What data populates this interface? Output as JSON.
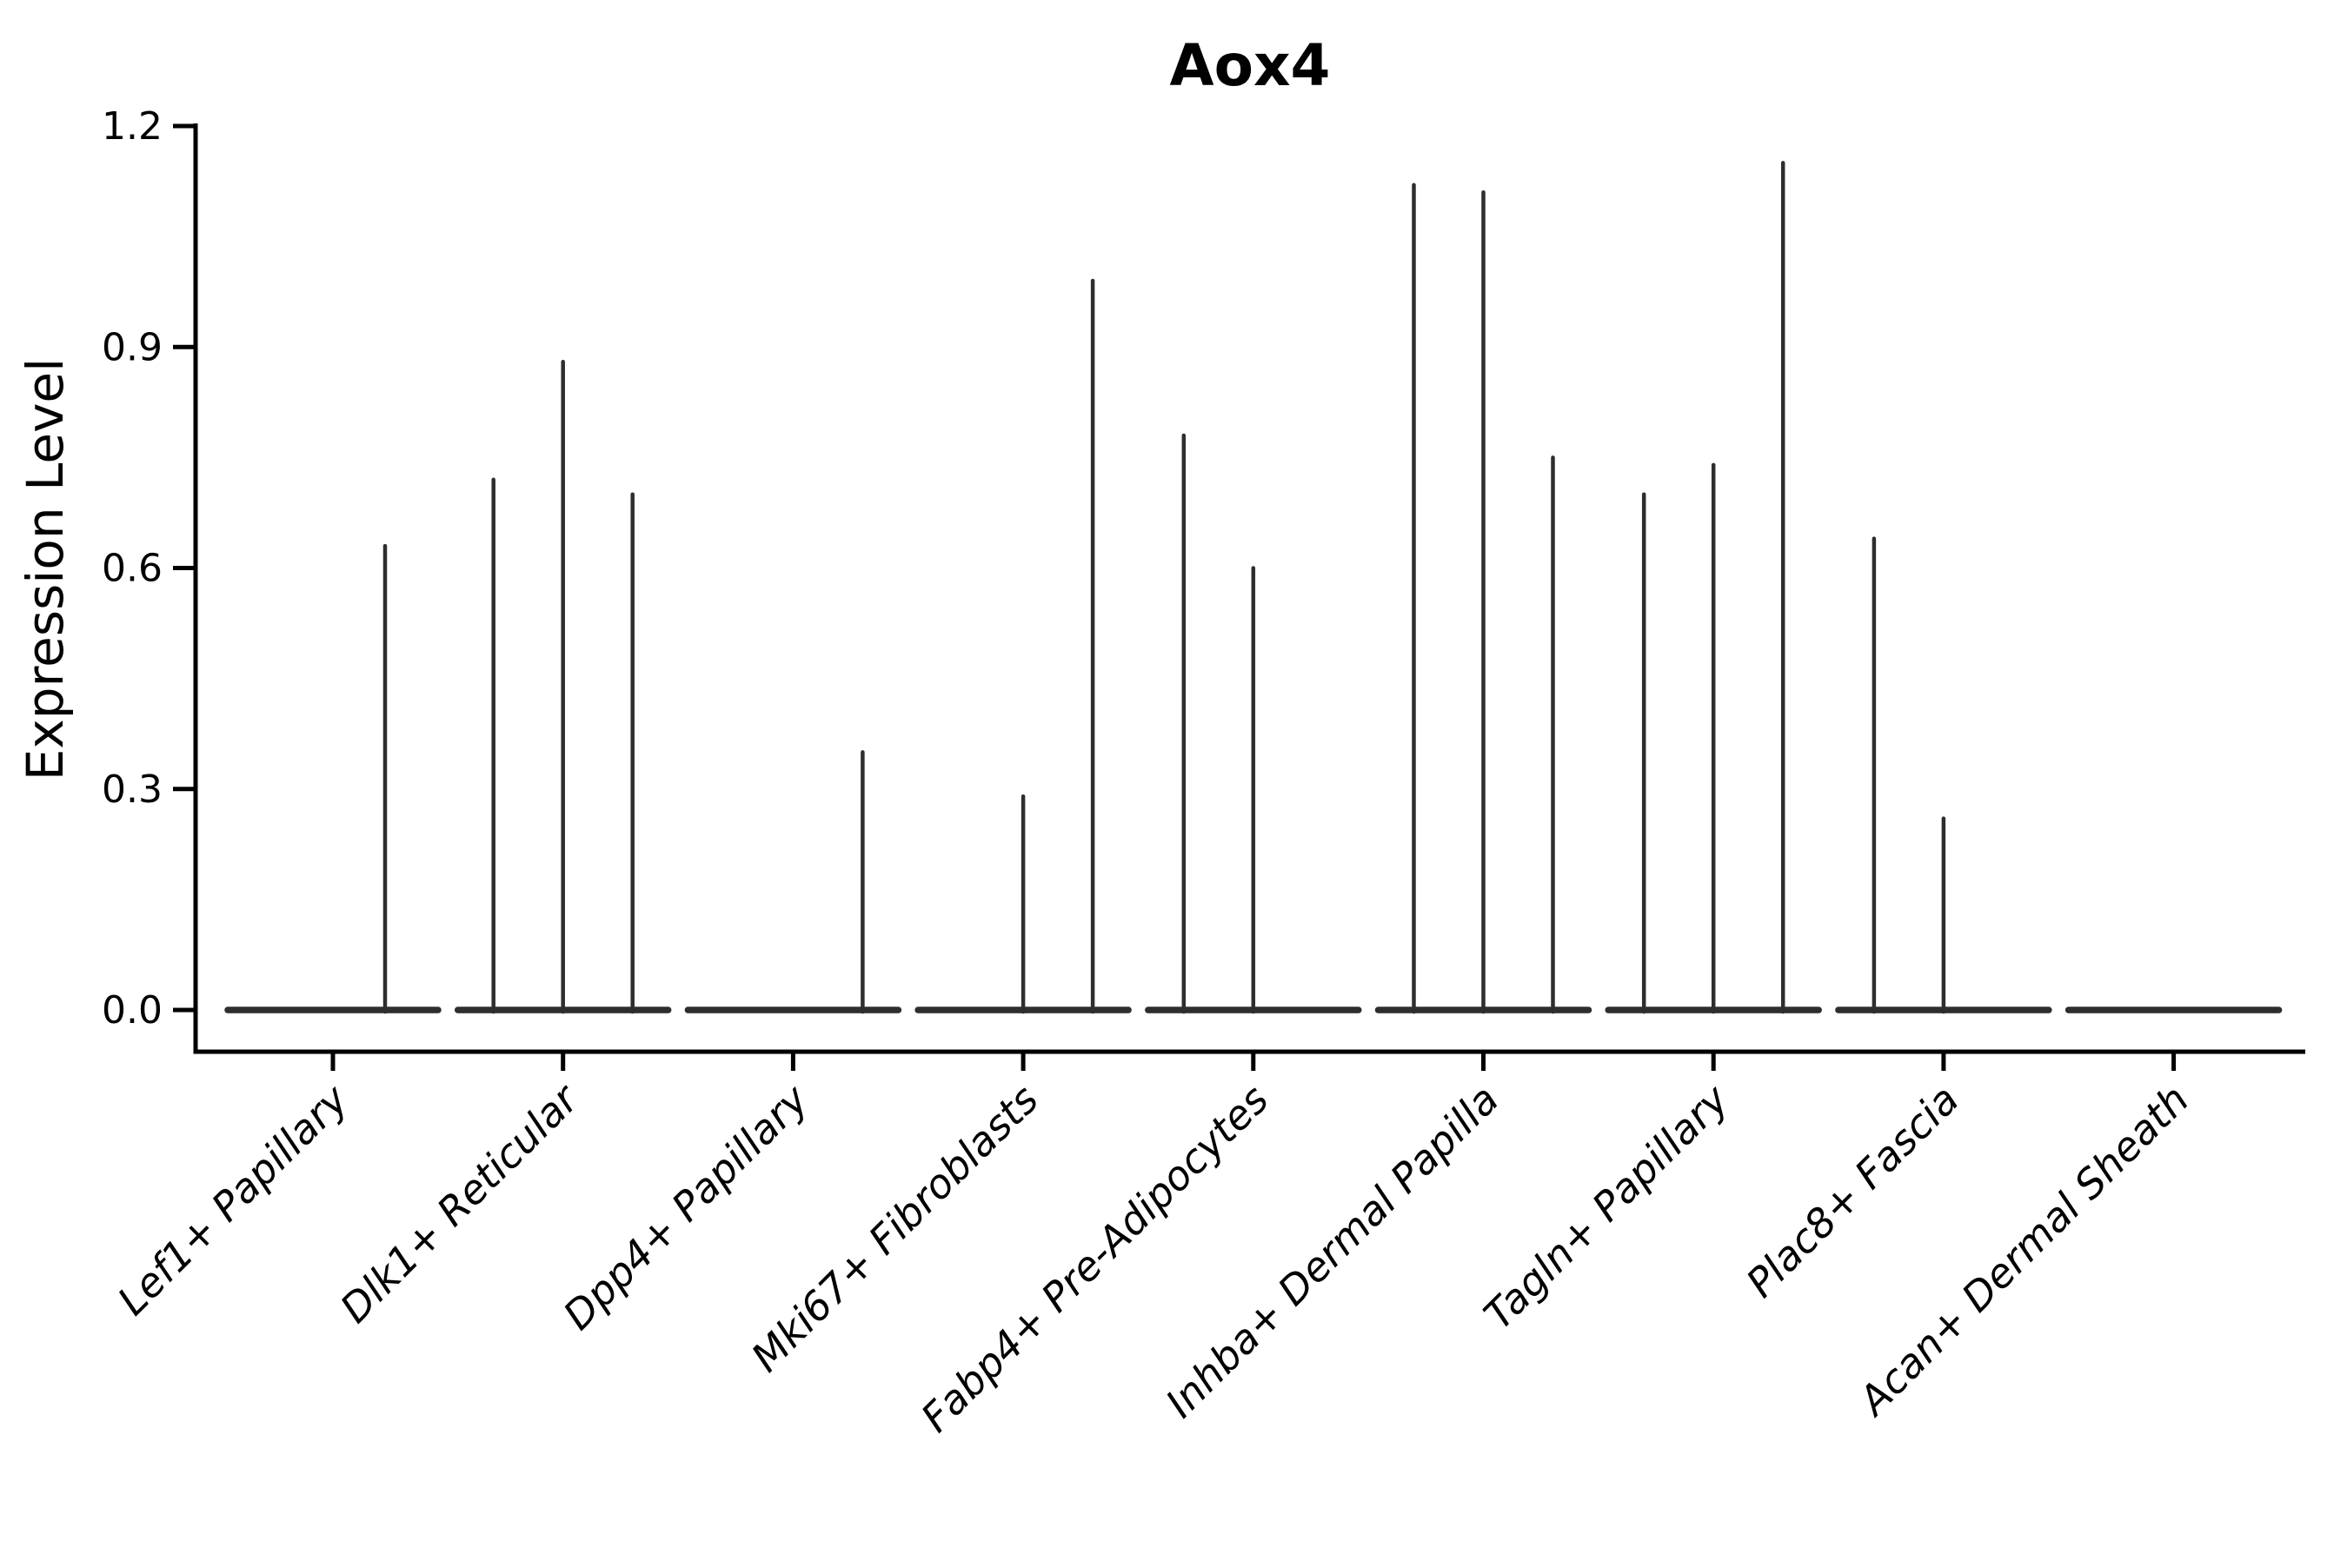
{
  "title": "Aox4",
  "y_axis": {
    "label": "Expression Level",
    "tick_labels": [
      "0.0",
      "0.3",
      "0.6",
      "0.9",
      "1.2"
    ]
  },
  "colors": {
    "background": "#ffffff",
    "axis": "#000000",
    "violin": "#2e2e2e"
  },
  "chart_data": {
    "type": "violin",
    "title": "Aox4",
    "xlabel": "",
    "ylabel": "Expression Level",
    "ylim": [
      -0.06,
      1.2
    ],
    "yticks": [
      0.0,
      0.3,
      0.6,
      0.9,
      1.2
    ],
    "grid": false,
    "legend": false,
    "description": "Thin collapsed violins: each cluster shows a flat density bar at expression 0 with narrow spikes rising to the maximum expression of sub-violins; spike dx is the pixel offset of each sub-violin center from the cluster tick.",
    "categories": [
      "Lef1+ Papillary",
      "Dlk1+ Reticular",
      "Dpp4+ Papillary",
      "Mki67+ Fibroblasts",
      "Fabp4+ Pre-Adipocytes",
      "Inhba+ Dermal Papilla",
      "Tagln+ Papillary",
      "Plac8+ Fascia",
      "Acan+ Dermal Sheath"
    ],
    "groups": [
      {
        "label": "Lef1+ Papillary",
        "baseline_value": 0.0,
        "spikes": [
          {
            "dx": 60,
            "value": 0.63
          }
        ]
      },
      {
        "label": "Dlk1+ Reticular",
        "baseline_value": 0.0,
        "spikes": [
          {
            "dx": -80,
            "value": 0.72
          },
          {
            "dx": 0,
            "value": 0.88
          },
          {
            "dx": 80,
            "value": 0.7
          }
        ]
      },
      {
        "label": "Dpp4+ Papillary",
        "baseline_value": 0.0,
        "spikes": [
          {
            "dx": 80,
            "value": 0.35
          }
        ]
      },
      {
        "label": "Mki67+ Fibroblasts",
        "baseline_value": 0.0,
        "spikes": [
          {
            "dx": 0,
            "value": 0.29
          },
          {
            "dx": 80,
            "value": 0.99
          }
        ]
      },
      {
        "label": "Fabp4+ Pre-Adipocytes",
        "baseline_value": 0.0,
        "spikes": [
          {
            "dx": -80,
            "value": 0.78
          },
          {
            "dx": 0,
            "value": 0.6
          }
        ]
      },
      {
        "label": "Inhba+ Dermal Papilla",
        "baseline_value": 0.0,
        "spikes": [
          {
            "dx": -80,
            "value": 1.12
          },
          {
            "dx": 0,
            "value": 1.11
          },
          {
            "dx": 80,
            "value": 0.75
          }
        ]
      },
      {
        "label": "Tagln+ Papillary",
        "baseline_value": 0.0,
        "spikes": [
          {
            "dx": -80,
            "value": 0.7
          },
          {
            "dx": 0,
            "value": 0.74
          },
          {
            "dx": 80,
            "value": 1.15
          }
        ]
      },
      {
        "label": "Plac8+ Fascia",
        "baseline_value": 0.0,
        "spikes": [
          {
            "dx": -80,
            "value": 0.64
          },
          {
            "dx": 0,
            "value": 0.26
          }
        ]
      },
      {
        "label": "Acan+ Dermal Sheath",
        "baseline_value": 0.0,
        "spikes": []
      }
    ]
  }
}
